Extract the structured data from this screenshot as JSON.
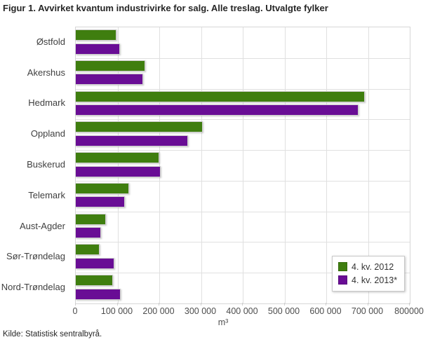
{
  "figure": {
    "title": "Figur 1. Avvirket kvantum industrivirke for salg. Alle treslag. Utvalgte fylker",
    "source": "Kilde: Statistisk sentralbyrå."
  },
  "chart_data": {
    "type": "bar",
    "orientation": "horizontal",
    "title": "Figur 1. Avvirket kvantum industrivirke for salg. Alle treslag. Utvalgte fylker",
    "categories": [
      "Østfold",
      "Akershus",
      "Hedmark",
      "Oppland",
      "Buskerud",
      "Telemark",
      "Aust-Agder",
      "Sør-Trøndelag",
      "Nord-Trøndelag"
    ],
    "series": [
      {
        "name": "4. kv. 2012",
        "color": "#3F7E0F",
        "values": [
          98000,
          167000,
          692000,
          305000,
          200000,
          128000,
          72000,
          57000,
          89000
        ]
      },
      {
        "name": "4. kv. 2013*",
        "color": "#690D95",
        "values": [
          106000,
          162000,
          677000,
          269000,
          204000,
          118000,
          61000,
          93000,
          108000
        ]
      }
    ],
    "xlabel": "m³",
    "xlim": [
      0,
      800000
    ],
    "x_tick_labels": [
      "0",
      "100 000",
      "200 000",
      "300 000",
      "400 000",
      "500 000",
      "600 000",
      "700 000",
      "800000"
    ],
    "grid": true,
    "legend_position": "inside-bottom-right"
  }
}
